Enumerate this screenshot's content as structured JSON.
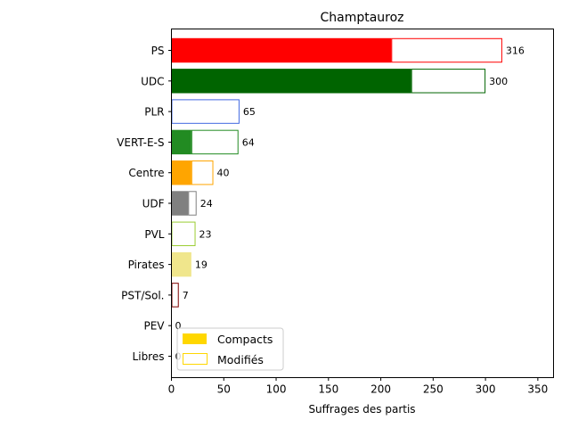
{
  "chart_data": {
    "type": "bar",
    "orientation": "horizontal",
    "stacked": true,
    "title": "Champtauroz",
    "xlabel": "Suffrages des partis",
    "ylabel": "",
    "xlim": [
      0,
      365
    ],
    "xticks": [
      0,
      50,
      100,
      150,
      200,
      250,
      300,
      350
    ],
    "grid": false,
    "legend_position": "lower-left",
    "categories": [
      "PS",
      "UDC",
      "PLR",
      "VERT-E-S",
      "Centre",
      "UDF",
      "PVL",
      "Pirates",
      "PST/Sol.",
      "PEV",
      "Libres"
    ],
    "colors": [
      "#ff0000",
      "#006400",
      "#4169e1",
      "#228b22",
      "#ffa500",
      "#808080",
      "#9acd32",
      "#f0e68c",
      "#800000",
      "#f5deb3",
      "#00bfff"
    ],
    "series": [
      {
        "name": "Compacts",
        "values": [
          210,
          229,
          0,
          19,
          19,
          16,
          0,
          19,
          0,
          0,
          0
        ]
      },
      {
        "name": "Modifiés",
        "values": [
          106,
          71,
          65,
          45,
          21,
          8,
          23,
          0,
          7,
          0,
          0
        ]
      }
    ],
    "totals": [
      316,
      300,
      65,
      64,
      40,
      24,
      23,
      19,
      7,
      0,
      0
    ],
    "legend": {
      "compact_label": "Compacts",
      "modified_label": "Modifiés",
      "compact_swatch_color": "#ffd700",
      "modified_swatch_color": "#ffd700"
    }
  }
}
